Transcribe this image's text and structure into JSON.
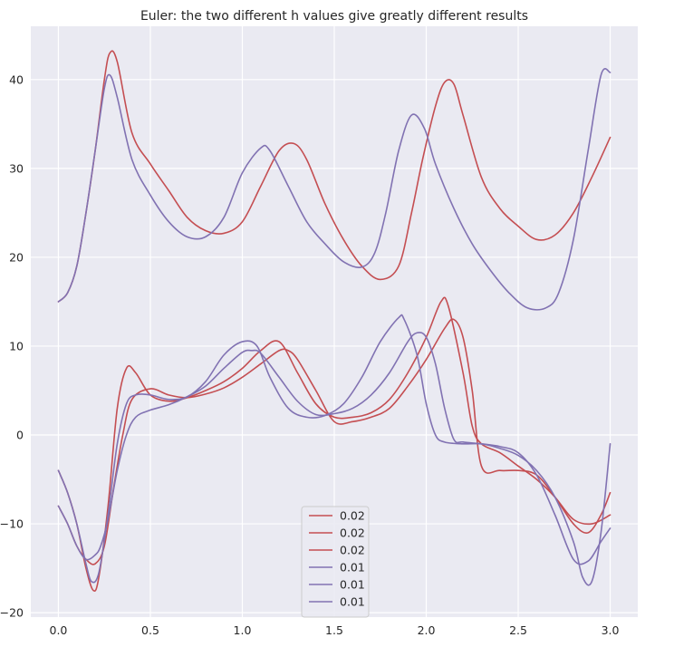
{
  "chart_data": {
    "type": "line",
    "title": "Euler: the two different h values give greatly different results",
    "xlabel": "",
    "ylabel": "",
    "xlim": [
      -0.15,
      3.15
    ],
    "ylim": [
      -20.5,
      46
    ],
    "xticks": [
      0.0,
      0.5,
      1.0,
      1.5,
      2.0,
      2.5,
      3.0
    ],
    "xtick_labels": [
      "0.0",
      "0.5",
      "1.0",
      "1.5",
      "2.0",
      "2.5",
      "3.0"
    ],
    "yticks": [
      -20,
      -10,
      0,
      10,
      20,
      30,
      40
    ],
    "ytick_labels": [
      "−20",
      "−10",
      "0",
      "10",
      "20",
      "30",
      "40"
    ],
    "grid": true,
    "background": "#eaeaf2",
    "grid_color": "#ffffff",
    "legend_position": "bottom-center",
    "series": [
      {
        "name": "0.02",
        "color": "#c44e52",
        "x": [
          0,
          0.05,
          0.1,
          0.15,
          0.2,
          0.25,
          0.28,
          0.32,
          0.4,
          0.5,
          0.6,
          0.7,
          0.8,
          0.9,
          1.0,
          1.1,
          1.2,
          1.28,
          1.35,
          1.45,
          1.55,
          1.65,
          1.75,
          1.85,
          1.92,
          1.98,
          2.05,
          2.1,
          2.15,
          2.2,
          2.3,
          2.4,
          2.5,
          2.6,
          2.7,
          2.8,
          2.9,
          3.0
        ],
        "y": [
          15,
          16,
          19,
          25,
          32,
          40,
          43,
          42,
          34,
          30.5,
          27.5,
          24.5,
          23,
          22.7,
          24,
          28,
          32,
          32.8,
          31,
          26,
          22,
          19,
          17.5,
          19,
          25,
          31,
          37,
          39.7,
          39.5,
          36,
          29,
          25.5,
          23.5,
          22,
          22.5,
          25,
          29,
          33.5
        ]
      },
      {
        "name": "0.02",
        "color": "#c44e52",
        "x": [
          0,
          0.05,
          0.1,
          0.15,
          0.19,
          0.22,
          0.27,
          0.32,
          0.37,
          0.42,
          0.5,
          0.6,
          0.7,
          0.8,
          0.9,
          1.0,
          1.1,
          1.2,
          1.3,
          1.4,
          1.5,
          1.6,
          1.7,
          1.8,
          1.9,
          2.0,
          2.08,
          2.12,
          2.2,
          2.25,
          2.3,
          2.4,
          2.5,
          2.6,
          2.7,
          2.8,
          2.9,
          3.0
        ],
        "y": [
          -4,
          -6.5,
          -10,
          -15,
          -17.5,
          -16,
          -8,
          3,
          7.5,
          7,
          4.5,
          3.8,
          4.2,
          5,
          6,
          7.5,
          9.5,
          10.5,
          7,
          3.5,
          2,
          2,
          2.5,
          4,
          7,
          11,
          15,
          14.5,
          7,
          1,
          -1,
          -2,
          -3.5,
          -5,
          -7,
          -9.5,
          -10,
          -9
        ]
      },
      {
        "name": "0.02",
        "color": "#c44e52",
        "x": [
          0,
          0.05,
          0.1,
          0.15,
          0.2,
          0.25,
          0.3,
          0.35,
          0.4,
          0.5,
          0.6,
          0.7,
          0.8,
          0.9,
          1.0,
          1.1,
          1.2,
          1.25,
          1.3,
          1.4,
          1.5,
          1.6,
          1.7,
          1.8,
          1.9,
          2.0,
          2.1,
          2.15,
          2.2,
          2.25,
          2.3,
          2.4,
          2.5,
          2.6,
          2.7,
          2.8,
          2.88,
          2.95,
          3.0
        ],
        "y": [
          -8,
          -10,
          -12.5,
          -14,
          -14.5,
          -12.5,
          -6,
          0,
          4,
          5.2,
          4.5,
          4.2,
          4.6,
          5.3,
          6.5,
          8,
          9.5,
          9.5,
          8.5,
          5,
          1.5,
          1.5,
          2,
          3,
          5.5,
          8.5,
          12,
          13,
          11,
          5,
          -3.5,
          -4,
          -4,
          -4.5,
          -7,
          -10,
          -11,
          -9,
          -6.5
        ]
      },
      {
        "name": "0.01",
        "color": "#8172b2",
        "x": [
          0,
          0.05,
          0.1,
          0.15,
          0.2,
          0.25,
          0.28,
          0.32,
          0.4,
          0.5,
          0.6,
          0.7,
          0.8,
          0.9,
          1.0,
          1.1,
          1.15,
          1.25,
          1.35,
          1.45,
          1.55,
          1.65,
          1.72,
          1.78,
          1.85,
          1.92,
          1.99,
          2.05,
          2.15,
          2.25,
          2.35,
          2.45,
          2.55,
          2.65,
          2.72,
          2.8,
          2.88,
          2.95,
          3.0
        ],
        "y": [
          15,
          16,
          19,
          25,
          32,
          39,
          40.5,
          38,
          31,
          27,
          24,
          22.3,
          22.3,
          24.5,
          29.5,
          32.3,
          32,
          28,
          24,
          21.5,
          19.5,
          18.9,
          20.5,
          25,
          32,
          36,
          34.5,
          30.5,
          25.5,
          21.5,
          18.5,
          16,
          14.3,
          14.3,
          16,
          22,
          32,
          40.5,
          40.8
        ]
      },
      {
        "name": "0.01",
        "color": "#8172b2",
        "x": [
          0,
          0.05,
          0.1,
          0.15,
          0.18,
          0.22,
          0.27,
          0.32,
          0.37,
          0.42,
          0.5,
          0.6,
          0.7,
          0.8,
          0.9,
          1.0,
          1.08,
          1.15,
          1.25,
          1.35,
          1.45,
          1.55,
          1.65,
          1.75,
          1.85,
          1.88,
          1.95,
          2.0,
          2.05,
          2.1,
          2.2,
          2.3,
          2.4,
          2.5,
          2.6,
          2.7,
          2.8,
          2.85,
          2.9,
          2.95,
          3.0
        ],
        "y": [
          -4,
          -6.5,
          -10,
          -14.5,
          -16.5,
          -15.5,
          -9,
          -1,
          3.5,
          4.5,
          4.5,
          4,
          4.3,
          6,
          9,
          10.5,
          10,
          6.5,
          3,
          2,
          2.2,
          3.5,
          6.5,
          10.5,
          13.2,
          13,
          9,
          3.5,
          0,
          -0.8,
          -1,
          -1,
          -1.5,
          -2.3,
          -4,
          -7,
          -12,
          -16,
          -16.5,
          -11,
          -1
        ]
      },
      {
        "name": "0.01",
        "color": "#8172b2",
        "x": [
          0,
          0.05,
          0.1,
          0.15,
          0.2,
          0.23,
          0.27,
          0.32,
          0.37,
          0.42,
          0.5,
          0.6,
          0.7,
          0.8,
          0.9,
          1.0,
          1.05,
          1.1,
          1.2,
          1.3,
          1.4,
          1.5,
          1.6,
          1.7,
          1.8,
          1.9,
          1.95,
          2.0,
          2.05,
          2.1,
          2.15,
          2.2,
          2.3,
          2.4,
          2.5,
          2.6,
          2.7,
          2.8,
          2.88,
          2.95,
          3.0
        ],
        "y": [
          -8,
          -10,
          -12.5,
          -14,
          -13.5,
          -12.5,
          -9.5,
          -4,
          0,
          2,
          2.8,
          3.4,
          4.3,
          5.5,
          7.5,
          9.3,
          9.5,
          9.2,
          6.5,
          3.8,
          2.3,
          2.4,
          3,
          4.5,
          7,
          10.5,
          11.5,
          11,
          8,
          3,
          -0.5,
          -0.8,
          -1,
          -1.3,
          -2,
          -4.5,
          -9,
          -14,
          -14.2,
          -12,
          -10.5
        ]
      }
    ]
  }
}
